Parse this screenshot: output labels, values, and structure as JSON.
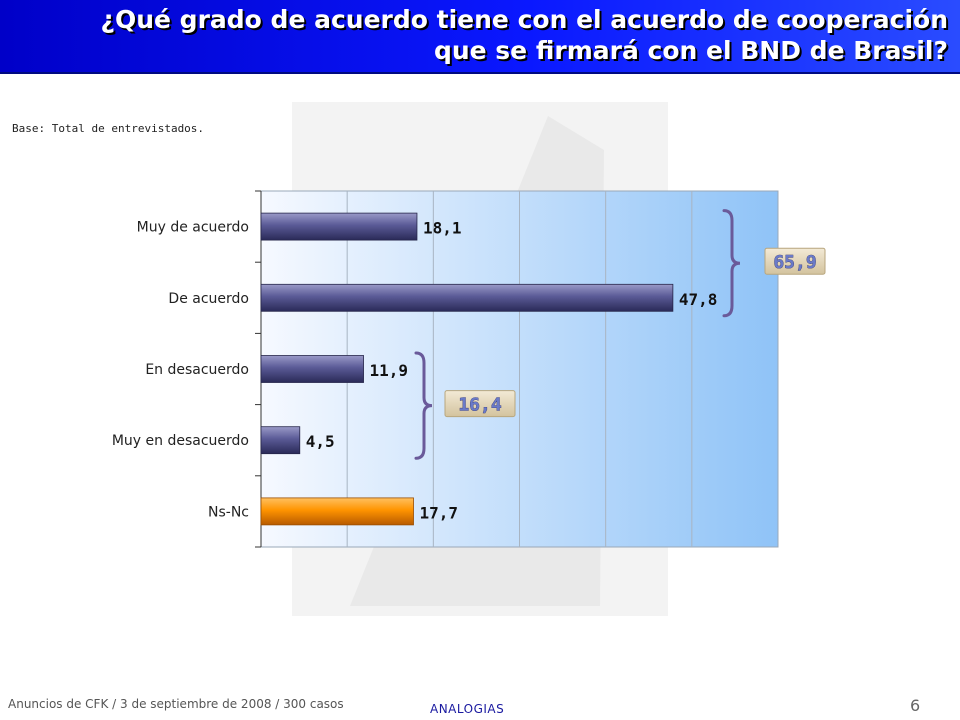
{
  "header": {
    "title": "¿Qué grado de acuerdo tiene con el acuerdo de cooperación que se firmará con el BND de Brasil?"
  },
  "base_note": "Base: Total de  entrevistados.",
  "footer": {
    "note": "Anuncios  de CFK / 3 de septiembre de 2008 / 300 casos",
    "brand": "ANALOGIAS",
    "page_number": "6"
  },
  "colors": {
    "bar": "#4a4a82",
    "bar_highlight": "#ff9400",
    "brace": "#6a5a9a",
    "plot_bg_left": "#f4f8ff",
    "plot_bg_right": "#8fc3f7"
  },
  "chart_data": {
    "type": "bar",
    "orientation": "horizontal",
    "categories": [
      "Muy de acuerdo",
      "De acuerdo",
      "En desacuerdo",
      "Muy en desacuerdo",
      "Ns-Nc"
    ],
    "values": [
      18.1,
      47.8,
      11.9,
      4.5,
      17.7
    ],
    "value_labels": [
      "18,1",
      "47,8",
      "11,9",
      "4,5",
      "17,7"
    ],
    "highlight": [
      false,
      false,
      false,
      false,
      true
    ],
    "xlim": [
      0,
      60
    ],
    "grid": true,
    "groups": [
      {
        "label": "65,9",
        "from": 0,
        "to": 1
      },
      {
        "label": "16,4",
        "from": 2,
        "to": 3
      }
    ]
  }
}
